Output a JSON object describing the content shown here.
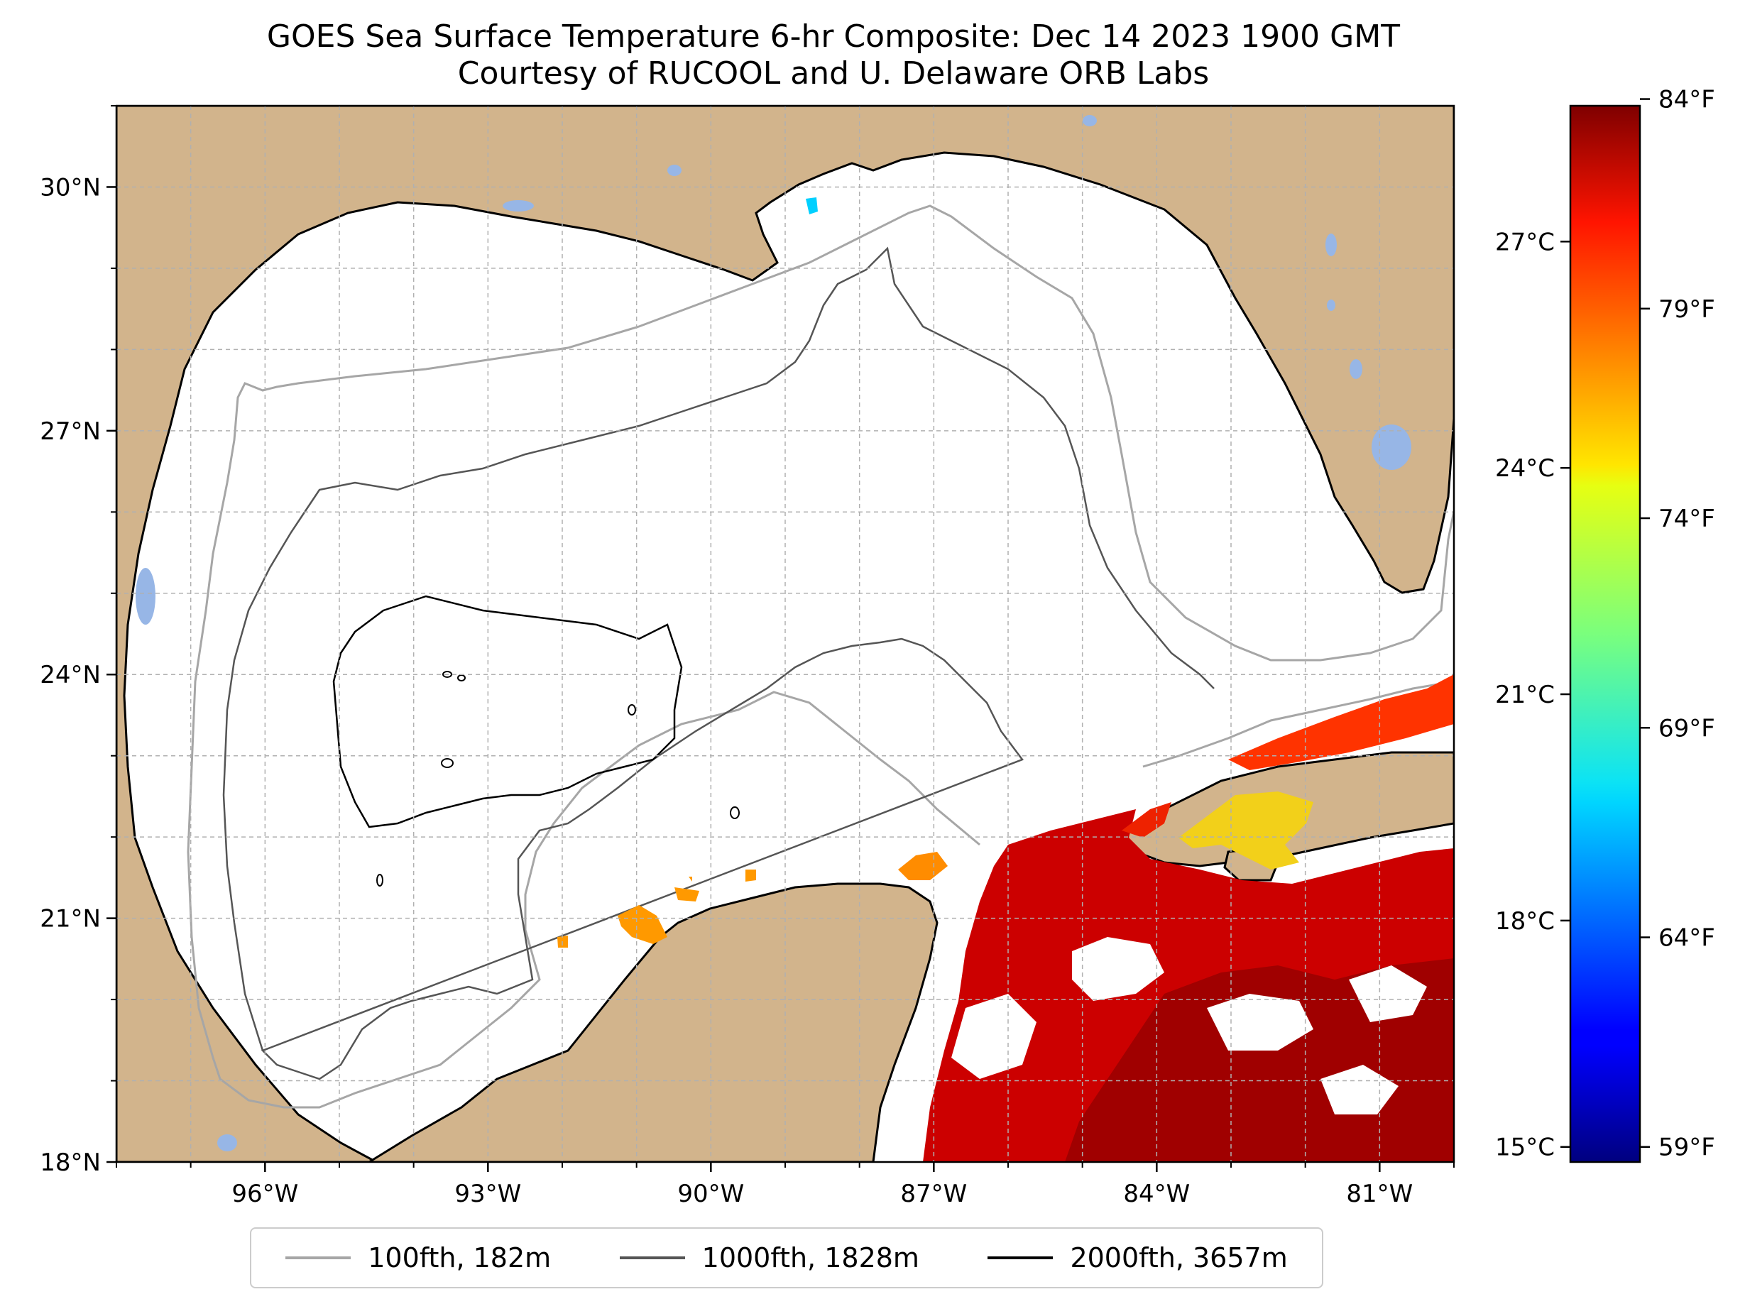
{
  "title": {
    "line1": "GOES Sea Surface Temperature 6-hr Composite: Dec 14 2023 1900 GMT",
    "line2": "Courtesy of RUCOOL and U. Delaware ORB Labs"
  },
  "map": {
    "lon_range": [
      -98.0,
      -80.0
    ],
    "lat_range": [
      18.0,
      31.0
    ],
    "lon_ticks": [
      {
        "value": -96,
        "label": "96°W"
      },
      {
        "value": -93,
        "label": "93°W"
      },
      {
        "value": -90,
        "label": "90°W"
      },
      {
        "value": -87,
        "label": "87°W"
      },
      {
        "value": -84,
        "label": "84°W"
      },
      {
        "value": -81,
        "label": "81°W"
      }
    ],
    "lat_ticks": [
      {
        "value": 30,
        "label": "30°N"
      },
      {
        "value": 27,
        "label": "27°N"
      },
      {
        "value": 24,
        "label": "24°N"
      },
      {
        "value": 21,
        "label": "21°N"
      },
      {
        "value": 18,
        "label": "18°N"
      }
    ],
    "grid": true,
    "colors": {
      "land": "#d2b48c",
      "water_body": "#97b6e6",
      "ocean": "#ffffff",
      "grid": "#b0b0b0"
    }
  },
  "colorbar": {
    "colormap": "jet",
    "celsius_ticks": [
      {
        "value": 27,
        "label": "27°C"
      },
      {
        "value": 24,
        "label": "24°C"
      },
      {
        "value": 21,
        "label": "21°C"
      },
      {
        "value": 18,
        "label": "18°C"
      },
      {
        "value": 15,
        "label": "15°C"
      }
    ],
    "fahrenheit_ticks": [
      {
        "value": 84,
        "label": "84°F"
      },
      {
        "value": 79,
        "label": "79°F"
      },
      {
        "value": 74,
        "label": "74°F"
      },
      {
        "value": 69,
        "label": "69°F"
      },
      {
        "value": 64,
        "label": "64°F"
      },
      {
        "value": 59,
        "label": "59°F"
      }
    ]
  },
  "legend": [
    {
      "label": "100fth, 182m",
      "color": "#a6a6a6"
    },
    {
      "label": "1000fth, 1828m",
      "color": "#555555"
    },
    {
      "label": "2000fth, 3657m",
      "color": "#000000"
    }
  ]
}
